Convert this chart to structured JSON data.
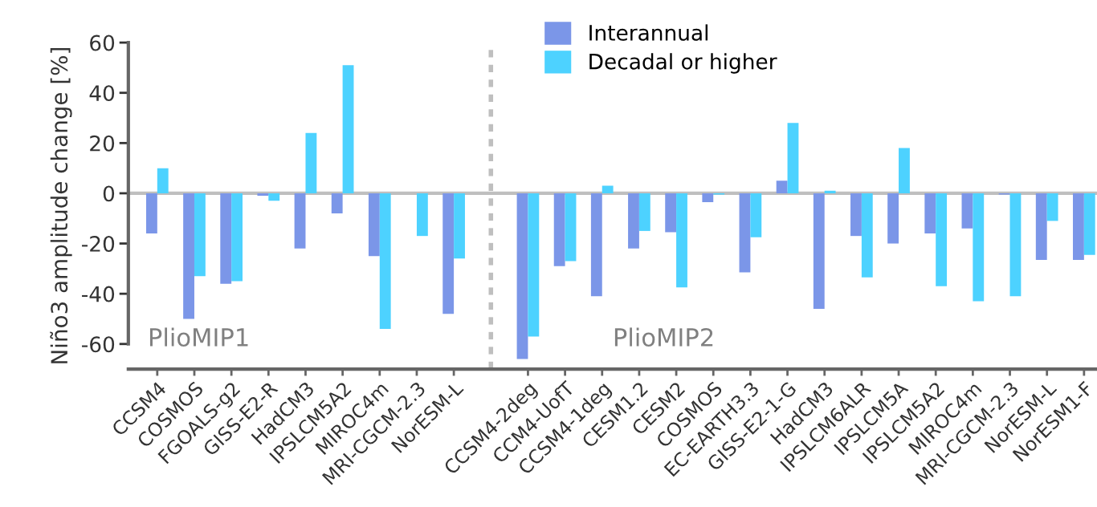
{
  "chart_data": {
    "type": "bar",
    "ylabel": "Niño3 amplitude change [%]",
    "categories": [
      "CCSM4",
      "COSMOS",
      "FGOALS-g2",
      "GISS-E2-R",
      "HadCM3",
      "IPSLCM5A2",
      "MIROC4m",
      "MRI-CGCM-2.3",
      "NorESM-L",
      null,
      "CCSM4-2deg",
      "CCM4-UofT",
      "CCSM4-1deg",
      "CESM1.2",
      "CESM2",
      "COSMOS",
      "EC-EARTH3.3",
      "GISS-E2-1-G",
      "HadCM3",
      "IPSLCM6ALR",
      "IPSLCM5A",
      "IPSLCM5A2",
      "MIROC4m",
      "MRI-CGCM-2.3",
      "NorESM-L",
      "NorESM1-F"
    ],
    "series": [
      {
        "name": "Interannual",
        "color": "#7b96e8",
        "values": [
          -16,
          -50,
          -36,
          -1,
          -22,
          -8,
          -25,
          0,
          -48,
          null,
          -66,
          -29,
          -41,
          -22,
          -15.5,
          -3.5,
          -31.5,
          5,
          -46,
          -17,
          -20,
          -16,
          -14,
          -0.5,
          -26.5,
          -26.5
        ]
      },
      {
        "name": "Decadal or higher",
        "color": "#4dd2ff",
        "values": [
          10,
          -33,
          -35,
          -3,
          24,
          51,
          -54,
          -17,
          -26,
          null,
          -57,
          -27,
          3,
          -15,
          -37.5,
          -0.5,
          -17.5,
          28,
          1,
          -33.5,
          18,
          -37,
          -43,
          -41,
          -11,
          -24.5
        ]
      }
    ],
    "ylim": [
      -70,
      60
    ],
    "yticks": [
      -60,
      -40,
      -20,
      0,
      20,
      40,
      60
    ],
    "grid": false,
    "legend": "top",
    "ref_lines": [
      {
        "axis": "y",
        "value": 0,
        "color": "#bfbfbf",
        "line_style": "solid"
      }
    ],
    "annotations": [
      "PlioMIP1",
      "PlioMIP2"
    ]
  }
}
